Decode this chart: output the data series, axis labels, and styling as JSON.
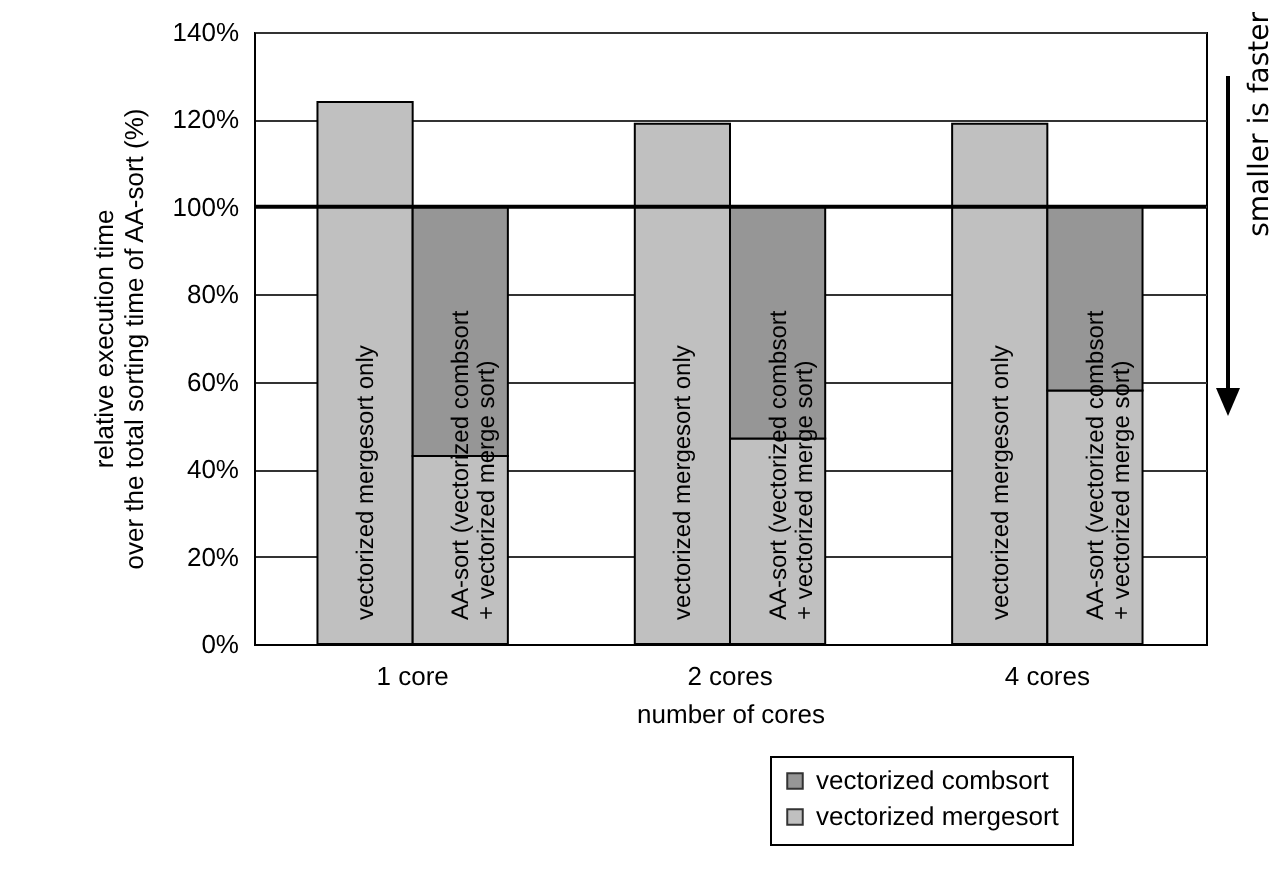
{
  "chart_data": {
    "type": "bar",
    "categories": [
      "vectorized mergesort only",
      "AA-sort (vectorized combsort\n+ vectorized merge sort)",
      "vectorized mergesort only",
      "AA-sort (vectorized combsort\n+ vectorized merge sort)",
      "vectorized mergesort only",
      "AA-sort (vectorized combsort\n+ vectorized merge sort)"
    ],
    "series": [
      {
        "name": "vectorized mergesort",
        "color": "#c0c0c0",
        "values": [
          124,
          43,
          119,
          47,
          119,
          58
        ]
      },
      {
        "name": "vectorized combsort",
        "color": "#969696",
        "values": [
          null,
          57,
          null,
          53,
          null,
          42
        ]
      }
    ],
    "stacked": true,
    "xlabel": "number of cores",
    "ylabel": "relative execution time\nover the total sorting time of AA-sort (%)",
    "ylim": [
      0,
      140
    ],
    "yticks": [
      {
        "value": 0,
        "label": "0%"
      },
      {
        "value": 20,
        "label": "20%"
      },
      {
        "value": 40,
        "label": "40%"
      },
      {
        "value": 60,
        "label": "60%"
      },
      {
        "value": 80,
        "label": "80%"
      },
      {
        "value": 100,
        "label": "100%"
      },
      {
        "value": 120,
        "label": "120%"
      },
      {
        "value": 140,
        "label": "140%"
      }
    ],
    "grid": "y",
    "legend": "bottom right",
    "ref_lines": [
      {
        "axis": "y",
        "value": 100,
        "color": "#000000"
      }
    ],
    "annotations": [
      "1 core",
      "2 cores",
      "4 cores",
      "smaller is faster"
    ]
  }
}
